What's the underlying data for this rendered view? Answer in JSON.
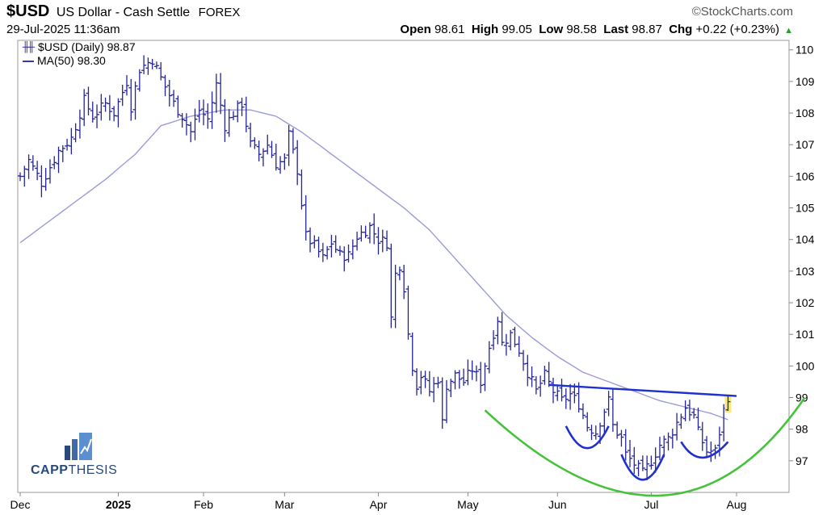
{
  "header": {
    "symbol": "$USD",
    "name": "US Dollar - Cash Settle",
    "exchange": "FOREX",
    "datetime": "29-Jul-2025 11:36am",
    "source": "©StockCharts.com",
    "open_label": "Open",
    "open": "98.61",
    "high_label": "High",
    "high": "99.05",
    "low_label": "Low",
    "low": "98.58",
    "last_label": "Last",
    "last": "98.87",
    "chg_label": "Chg",
    "chg": "+0.22 (+0.23%)"
  },
  "legend": {
    "price_label": "$USD (Daily) 98.87",
    "ma_label": "MA(50) 98.30"
  },
  "logo": {
    "bold": "CAPP",
    "thin": "THESIS"
  },
  "colors": {
    "price_bars": "#23239a",
    "ma_line": "#9b9bd8",
    "resistance_line": "#1f2fd0",
    "cup_arc": "#44c23a",
    "shoulder_arcs": "#1f2fd0",
    "last_bar_highlight": "#f3ea7a",
    "logo": "#29497a"
  },
  "chart_data": {
    "type": "ohlc",
    "y_axis_side": "right",
    "ylim": [
      96,
      110.3
    ],
    "y_ticks": [
      97,
      98,
      99,
      100,
      101,
      102,
      103,
      104,
      105,
      106,
      107,
      108,
      109,
      110
    ],
    "x_labels": [
      "Dec",
      "2025",
      "Feb",
      "Mar",
      "Apr",
      "May",
      "Jun",
      "Jul",
      "Aug"
    ],
    "x_label_positions": [
      0,
      23,
      43,
      62,
      84,
      105,
      126,
      148,
      168
    ],
    "n_bars": 168,
    "anchors": [
      {
        "i": 0,
        "v": 106.0
      },
      {
        "i": 2,
        "v": 106.5
      },
      {
        "i": 5,
        "v": 105.8
      },
      {
        "i": 9,
        "v": 106.8
      },
      {
        "i": 12,
        "v": 107.2
      },
      {
        "i": 15,
        "v": 108.4
      },
      {
        "i": 17,
        "v": 107.9
      },
      {
        "i": 20,
        "v": 108.3
      },
      {
        "i": 22,
        "v": 108.0
      },
      {
        "i": 25,
        "v": 109.0
      },
      {
        "i": 26,
        "v": 108.2
      },
      {
        "i": 28,
        "v": 109.4
      },
      {
        "i": 31,
        "v": 109.7
      },
      {
        "i": 33,
        "v": 109.1
      },
      {
        "i": 36,
        "v": 108.3
      },
      {
        "i": 38,
        "v": 107.9
      },
      {
        "i": 40,
        "v": 107.4
      },
      {
        "i": 42,
        "v": 108.1
      },
      {
        "i": 44,
        "v": 107.8
      },
      {
        "i": 46,
        "v": 108.9
      },
      {
        "i": 48,
        "v": 107.6
      },
      {
        "i": 50,
        "v": 108.0
      },
      {
        "i": 52,
        "v": 108.3
      },
      {
        "i": 54,
        "v": 107.0
      },
      {
        "i": 56,
        "v": 106.7
      },
      {
        "i": 58,
        "v": 107.0
      },
      {
        "i": 60,
        "v": 106.4
      },
      {
        "i": 62,
        "v": 106.5
      },
      {
        "i": 63,
        "v": 107.3
      },
      {
        "i": 65,
        "v": 106.2
      },
      {
        "i": 67,
        "v": 104.1
      },
      {
        "i": 69,
        "v": 103.8
      },
      {
        "i": 71,
        "v": 103.4
      },
      {
        "i": 73,
        "v": 103.9
      },
      {
        "i": 75,
        "v": 103.5
      },
      {
        "i": 77,
        "v": 103.5
      },
      {
        "i": 79,
        "v": 104.1
      },
      {
        "i": 82,
        "v": 104.4
      },
      {
        "i": 84,
        "v": 104.0
      },
      {
        "i": 86,
        "v": 103.9
      },
      {
        "i": 87,
        "v": 101.5
      },
      {
        "i": 88,
        "v": 102.9
      },
      {
        "i": 89,
        "v": 103.2
      },
      {
        "i": 90,
        "v": 102.5
      },
      {
        "i": 91,
        "v": 101.0
      },
      {
        "i": 92,
        "v": 100.0
      },
      {
        "i": 93,
        "v": 99.4
      },
      {
        "i": 94,
        "v": 99.7
      },
      {
        "i": 96,
        "v": 99.2
      },
      {
        "i": 98,
        "v": 99.6
      },
      {
        "i": 99,
        "v": 98.2
      },
      {
        "i": 100,
        "v": 99.4
      },
      {
        "i": 102,
        "v": 99.7
      },
      {
        "i": 104,
        "v": 99.5
      },
      {
        "i": 106,
        "v": 99.9
      },
      {
        "i": 108,
        "v": 99.5
      },
      {
        "i": 110,
        "v": 100.6
      },
      {
        "i": 112,
        "v": 101.5
      },
      {
        "i": 113,
        "v": 100.7
      },
      {
        "i": 115,
        "v": 101.0
      },
      {
        "i": 117,
        "v": 100.5
      },
      {
        "i": 119,
        "v": 99.8
      },
      {
        "i": 121,
        "v": 99.2
      },
      {
        "i": 123,
        "v": 99.7
      },
      {
        "i": 125,
        "v": 99.2
      },
      {
        "i": 127,
        "v": 98.9
      },
      {
        "i": 129,
        "v": 99.1
      },
      {
        "i": 131,
        "v": 98.8
      },
      {
        "i": 133,
        "v": 98.1
      },
      {
        "i": 135,
        "v": 97.9
      },
      {
        "i": 137,
        "v": 98.6
      },
      {
        "i": 138,
        "v": 98.9
      },
      {
        "i": 139,
        "v": 98.1
      },
      {
        "i": 141,
        "v": 97.7
      },
      {
        "i": 142,
        "v": 97.2
      },
      {
        "i": 144,
        "v": 96.9
      },
      {
        "i": 146,
        "v": 96.6
      },
      {
        "i": 148,
        "v": 97.0
      },
      {
        "i": 150,
        "v": 97.5
      },
      {
        "i": 152,
        "v": 97.7
      },
      {
        "i": 154,
        "v": 98.2
      },
      {
        "i": 156,
        "v": 98.7
      },
      {
        "i": 158,
        "v": 98.4
      },
      {
        "i": 159,
        "v": 97.9
      },
      {
        "i": 161,
        "v": 97.3
      },
      {
        "i": 163,
        "v": 97.3
      },
      {
        "i": 164,
        "v": 97.9
      },
      {
        "i": 165,
        "v": 98.6
      },
      {
        "i": 166,
        "v": 98.87
      }
    ],
    "ma": [
      {
        "i": 0,
        "v": 103.9
      },
      {
        "i": 10,
        "v": 104.9
      },
      {
        "i": 20,
        "v": 105.9
      },
      {
        "i": 27,
        "v": 106.7
      },
      {
        "i": 33,
        "v": 107.6
      },
      {
        "i": 40,
        "v": 107.9
      },
      {
        "i": 48,
        "v": 108.1
      },
      {
        "i": 54,
        "v": 108.1
      },
      {
        "i": 60,
        "v": 107.9
      },
      {
        "i": 66,
        "v": 107.4
      },
      {
        "i": 72,
        "v": 106.8
      },
      {
        "i": 78,
        "v": 106.2
      },
      {
        "i": 84,
        "v": 105.6
      },
      {
        "i": 90,
        "v": 105.0
      },
      {
        "i": 96,
        "v": 104.3
      },
      {
        "i": 102,
        "v": 103.4
      },
      {
        "i": 108,
        "v": 102.5
      },
      {
        "i": 114,
        "v": 101.6
      },
      {
        "i": 120,
        "v": 100.9
      },
      {
        "i": 126,
        "v": 100.3
      },
      {
        "i": 132,
        "v": 99.8
      },
      {
        "i": 138,
        "v": 99.5
      },
      {
        "i": 144,
        "v": 99.2
      },
      {
        "i": 150,
        "v": 98.9
      },
      {
        "i": 156,
        "v": 98.7
      },
      {
        "i": 162,
        "v": 98.5
      },
      {
        "i": 166,
        "v": 98.3
      }
    ],
    "resistance_line": [
      {
        "i": 124,
        "v": 99.4
      },
      {
        "i": 168,
        "v": 99.05
      }
    ],
    "cup_arc": [
      {
        "i": 109,
        "v": 98.6
      },
      {
        "i": 150,
        "v": 95.9
      },
      {
        "i": 184,
        "v": 99.0
      }
    ],
    "shoulder_arcs": [
      [
        {
          "i": 128,
          "v": 98.1
        },
        {
          "i": 133,
          "v": 97.4
        },
        {
          "i": 138,
          "v": 98.1
        }
      ],
      [
        {
          "i": 141,
          "v": 97.2
        },
        {
          "i": 146,
          "v": 96.4
        },
        {
          "i": 151,
          "v": 97.2
        }
      ],
      [
        {
          "i": 155,
          "v": 97.6
        },
        {
          "i": 160,
          "v": 97.1
        },
        {
          "i": 166,
          "v": 97.6
        }
      ]
    ]
  }
}
